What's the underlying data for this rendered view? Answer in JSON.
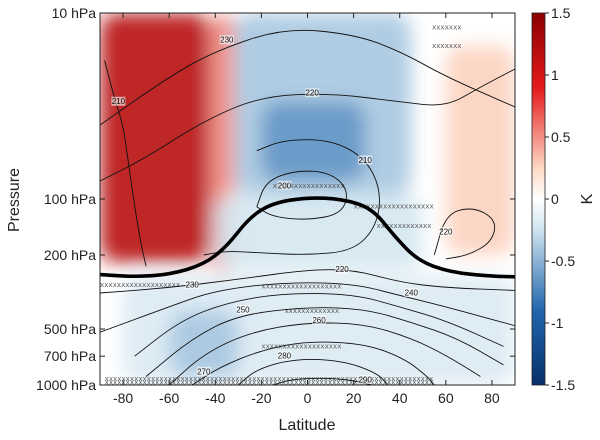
{
  "chart_data": {
    "type": "heatmap",
    "xlabel": "Latitude",
    "ylabel": "Pressure",
    "colorbar_label": "K",
    "x_range": [
      -90,
      90
    ],
    "x_ticks": [
      -80,
      -60,
      -40,
      -20,
      0,
      20,
      40,
      60,
      80
    ],
    "x_tick_labels": [
      "-80",
      "-60",
      "-40",
      "-20",
      "0",
      "20",
      "40",
      "60",
      "80"
    ],
    "y_scale": "log",
    "y_range_hPa": [
      1000,
      10
    ],
    "y_ticks_hPa": [
      10,
      100,
      200,
      500,
      700,
      1000
    ],
    "y_tick_labels": [
      "10 hPa",
      "100 hPa",
      "200 hPa",
      "500 hPa",
      "700 hPa",
      "1000 hPa"
    ],
    "colorbar_range": [
      -1.5,
      1.5
    ],
    "colorbar_ticks": [
      1.5,
      1,
      0.5,
      0,
      -0.5,
      -1,
      -1.5
    ],
    "colorbar_tick_labels": [
      "1.5",
      "1",
      "0.5",
      "0",
      "-0.5",
      "-1",
      "-1.5"
    ],
    "colormap": {
      "low": "#08306b",
      "mid": "#ffffff",
      "high": "#8b0000"
    },
    "anomaly_regions": [
      {
        "lat": [
          -90,
          -42
        ],
        "p": [
          10,
          220
        ],
        "value": 1.2
      },
      {
        "lat": [
          -42,
          -32
        ],
        "p": [
          10,
          250
        ],
        "value": 0.6
      },
      {
        "lat": [
          -32,
          45
        ],
        "p": [
          10,
          95
        ],
        "value": -0.5
      },
      {
        "lat": [
          -20,
          25
        ],
        "p": [
          30,
          80
        ],
        "value": -0.7
      },
      {
        "lat": [
          -40,
          50
        ],
        "p": [
          95,
          240
        ],
        "value": -0.35
      },
      {
        "lat": [
          60,
          90
        ],
        "p": [
          15,
          200
        ],
        "value": 0.4
      },
      {
        "lat": [
          -80,
          90
        ],
        "p": [
          260,
          1000
        ],
        "value": -0.3
      },
      {
        "lat": [
          -60,
          -30
        ],
        "p": [
          400,
          900
        ],
        "value": -0.5
      }
    ],
    "temperature_contours": [
      {
        "label": "230",
        "label_at": [
          -35,
          14
        ],
        "points": [
          [
            -90,
            40
          ],
          [
            -60,
            22
          ],
          [
            -40,
            16
          ],
          [
            -10,
            12
          ],
          [
            20,
            13
          ],
          [
            40,
            16
          ],
          [
            60,
            22
          ],
          [
            90,
            32
          ]
        ]
      },
      {
        "label": "220",
        "label_at": [
          2,
          27
        ],
        "points": [
          [
            -90,
            80
          ],
          [
            -70,
            60
          ],
          [
            -45,
            38
          ],
          [
            -20,
            28
          ],
          [
            10,
            27
          ],
          [
            40,
            30
          ],
          [
            60,
            32
          ],
          [
            75,
            25
          ],
          [
            90,
            20
          ]
        ]
      },
      {
        "label": "210",
        "label_at": [
          -82,
          30
        ],
        "points": [
          [
            -88,
            18
          ],
          [
            -84,
            28
          ],
          [
            -80,
            40
          ],
          [
            -78,
            60
          ],
          [
            -76,
            90
          ],
          [
            -74,
            130
          ],
          [
            -72,
            180
          ],
          [
            -70,
            230
          ]
        ]
      },
      {
        "label": "210",
        "label_at": [
          25,
          62
        ],
        "points": [
          [
            -22,
            55
          ],
          [
            -10,
            48
          ],
          [
            10,
            48
          ],
          [
            25,
            60
          ],
          [
            32,
            90
          ],
          [
            30,
            140
          ],
          [
            20,
            190
          ],
          [
            0,
            200
          ],
          [
            -20,
            195
          ],
          [
            -35,
            190
          ],
          [
            -45,
            200
          ]
        ]
      },
      {
        "label": "200",
        "label_at": [
          -10,
          85
        ],
        "points": [
          [
            -22,
            110
          ],
          [
            -18,
            80
          ],
          [
            -5,
            70
          ],
          [
            10,
            72
          ],
          [
            18,
            90
          ],
          [
            15,
            120
          ],
          [
            0,
            130
          ],
          [
            -15,
            125
          ],
          [
            -22,
            110
          ]
        ]
      },
      {
        "label": "220",
        "label_at": [
          60,
          150
        ],
        "points": [
          [
            55,
            200
          ],
          [
            60,
            120
          ],
          [
            72,
            110
          ],
          [
            82,
            130
          ],
          [
            80,
            170
          ],
          [
            70,
            200
          ],
          [
            60,
            210
          ]
        ]
      },
      {
        "label": "220",
        "label_at": [
          15,
          240
        ],
        "points": [
          [
            -90,
            320
          ],
          [
            -60,
            300
          ],
          [
            -30,
            270
          ],
          [
            0,
            240
          ],
          [
            20,
            240
          ],
          [
            40,
            280
          ],
          [
            60,
            300
          ],
          [
            90,
            310
          ]
        ]
      },
      {
        "label": "230",
        "label_at": [
          -50,
          290
        ],
        "points": [
          [
            -90,
            520
          ],
          [
            -60,
            380
          ],
          [
            -40,
            310
          ],
          [
            -10,
            280
          ],
          [
            20,
            285
          ],
          [
            40,
            330
          ],
          [
            60,
            380
          ],
          [
            90,
            480
          ]
        ]
      },
      {
        "label": "240",
        "label_at": [
          45,
          320
        ],
        "points": [
          [
            -75,
            700
          ],
          [
            -55,
            450
          ],
          [
            -35,
            360
          ],
          [
            -10,
            320
          ],
          [
            20,
            325
          ],
          [
            40,
            380
          ],
          [
            60,
            450
          ],
          [
            85,
            620
          ]
        ]
      },
      {
        "label": "250",
        "label_at": [
          -28,
          395
        ],
        "points": [
          [
            -70,
            900
          ],
          [
            -50,
            560
          ],
          [
            -30,
            420
          ],
          [
            0,
            380
          ],
          [
            25,
            390
          ],
          [
            45,
            460
          ],
          [
            65,
            560
          ],
          [
            85,
            780
          ]
        ]
      },
      {
        "label": "260",
        "label_at": [
          5,
          450
        ],
        "points": [
          [
            -60,
            1000
          ],
          [
            -45,
            680
          ],
          [
            -25,
            520
          ],
          [
            0,
            460
          ],
          [
            25,
            470
          ],
          [
            45,
            560
          ],
          [
            60,
            690
          ],
          [
            75,
            900
          ]
        ]
      },
      {
        "label": "270",
        "label_at": [
          -45,
          850
        ],
        "points": [
          [
            -50,
            1000
          ],
          [
            -38,
            800
          ],
          [
            -20,
            650
          ],
          [
            0,
            580
          ],
          [
            25,
            600
          ],
          [
            42,
            720
          ],
          [
            52,
            900
          ],
          [
            55,
            1000
          ]
        ]
      },
      {
        "label": "280",
        "label_at": [
          -10,
          700
        ],
        "points": [
          [
            -30,
            1000
          ],
          [
            -22,
            820
          ],
          [
            -5,
            720
          ],
          [
            15,
            740
          ],
          [
            30,
            860
          ],
          [
            35,
            1000
          ]
        ]
      },
      {
        "label": "290",
        "label_at": [
          25,
          940
        ],
        "points": [
          [
            -15,
            1000
          ],
          [
            -5,
            920
          ],
          [
            15,
            920
          ],
          [
            28,
            1000
          ]
        ]
      }
    ],
    "tropopause": [
      [
        -90,
        255
      ],
      [
        -75,
        262
      ],
      [
        -60,
        255
      ],
      [
        -45,
        225
      ],
      [
        -35,
        180
      ],
      [
        -25,
        125
      ],
      [
        -15,
        105
      ],
      [
        0,
        98
      ],
      [
        15,
        100
      ],
      [
        28,
        112
      ],
      [
        38,
        160
      ],
      [
        48,
        215
      ],
      [
        62,
        248
      ],
      [
        80,
        260
      ],
      [
        90,
        262
      ]
    ],
    "stippling_rows": [
      {
        "p": 12,
        "lat": [
          54,
          70
        ]
      },
      {
        "p": 15,
        "lat": [
          54,
          70
        ]
      },
      {
        "p": 85,
        "lat": [
          -15,
          25
        ]
      },
      {
        "p": 110,
        "lat": [
          20,
          65
        ]
      },
      {
        "p": 140,
        "lat": [
          30,
          60
        ]
      },
      {
        "p": 290,
        "lat": [
          -90,
          -45
        ]
      },
      {
        "p": 295,
        "lat": [
          -20,
          25
        ]
      },
      {
        "p": 400,
        "lat": [
          -10,
          20
        ]
      },
      {
        "p": 620,
        "lat": [
          -20,
          25
        ]
      },
      {
        "p": 930,
        "lat": [
          -88,
          88
        ]
      },
      {
        "p": 970,
        "lat": [
          -88,
          88
        ]
      }
    ]
  }
}
